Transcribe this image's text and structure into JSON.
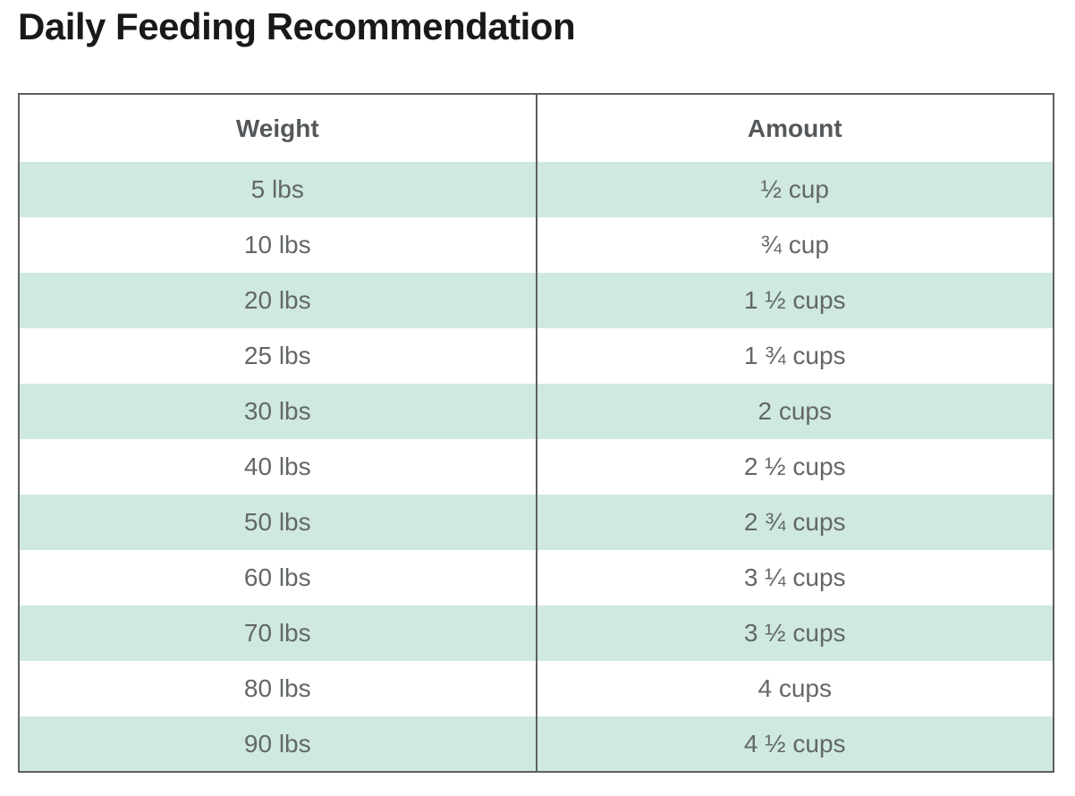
{
  "page_title": "Daily Feeding Recommendation",
  "feeding_table": {
    "columns": [
      {
        "label": "Weight"
      },
      {
        "label": "Amount"
      }
    ],
    "rows": [
      {
        "weight": "5 lbs",
        "amount": "½ cup"
      },
      {
        "weight": "10 lbs",
        "amount": "¾ cup"
      },
      {
        "weight": "20 lbs",
        "amount": "1 ½ cups"
      },
      {
        "weight": "25 lbs",
        "amount": "1 ¾ cups"
      },
      {
        "weight": "30 lbs",
        "amount": "2 cups"
      },
      {
        "weight": "40 lbs",
        "amount": "2 ½ cups"
      },
      {
        "weight": "50 lbs",
        "amount": "2 ¾ cups"
      },
      {
        "weight": "60 lbs",
        "amount": "3 ¼ cups"
      },
      {
        "weight": "70 lbs",
        "amount": "3 ½ cups"
      },
      {
        "weight": "80 lbs",
        "amount": "4 cups"
      },
      {
        "weight": "90 lbs",
        "amount": "4 ½ cups"
      }
    ]
  },
  "colors": {
    "stripe_green": "#cfe9de",
    "table_border": "#5f5f5f",
    "header_text": "#54585b",
    "cell_text": "#63676a",
    "title_text": "#191919"
  }
}
